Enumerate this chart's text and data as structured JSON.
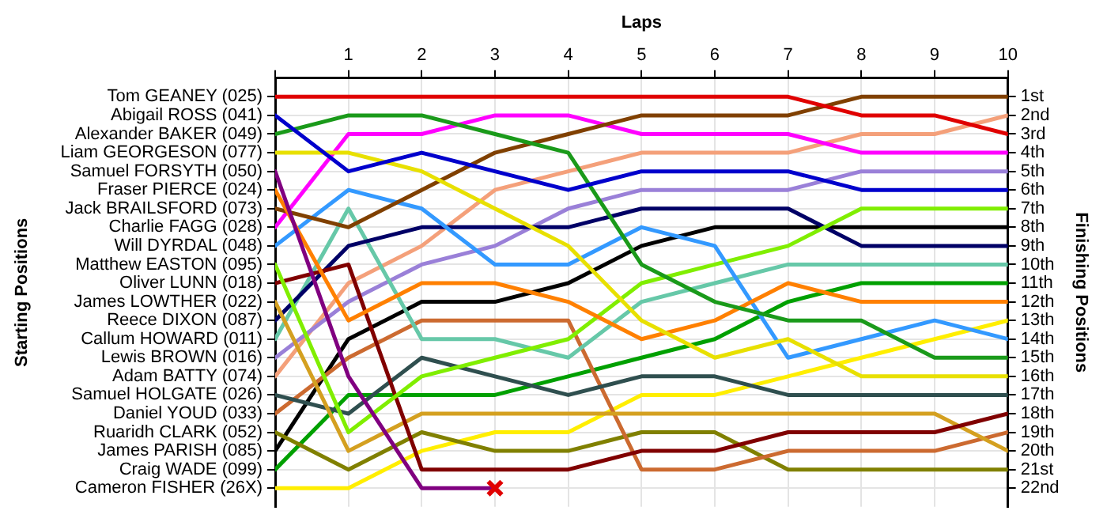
{
  "chart_data": {
    "type": "line",
    "xlabel": "Laps",
    "ylabel": "Finishing Positions",
    "x": [
      0,
      1,
      2,
      3,
      4,
      5,
      6,
      7,
      8,
      9,
      10
    ],
    "xlim": [
      0,
      10
    ],
    "xticks": [
      {
        "value": 0,
        "label": null
      },
      1,
      2,
      3,
      4,
      5,
      6,
      7,
      8,
      9,
      10
    ],
    "ylim": [
      23,
      0
    ],
    "yticks": [
      {
        "value": 1,
        "label": "1st"
      },
      {
        "value": 2,
        "label": "2nd"
      },
      {
        "value": 3,
        "label": "3rd"
      },
      {
        "value": 4,
        "label": "4th"
      },
      {
        "value": 5,
        "label": "5th"
      },
      {
        "value": 6,
        "label": "6th"
      },
      {
        "value": 7,
        "label": "7th"
      },
      {
        "value": 8,
        "label": "8th"
      },
      {
        "value": 9,
        "label": "9th"
      },
      {
        "value": 10,
        "label": "10th"
      },
      {
        "value": 11,
        "label": "11th"
      },
      {
        "value": 12,
        "label": "12th"
      },
      {
        "value": 13,
        "label": "13th"
      },
      {
        "value": 14,
        "label": "14th"
      },
      {
        "value": 15,
        "label": "15th"
      },
      {
        "value": 16,
        "label": "16th"
      },
      {
        "value": 17,
        "label": "17th"
      },
      {
        "value": 18,
        "label": "18th"
      },
      {
        "value": 19,
        "label": "19th"
      },
      {
        "value": 20,
        "label": "20th"
      },
      {
        "value": 21,
        "label": "21st"
      },
      {
        "value": 22,
        "label": "22nd"
      }
    ],
    "annotations": [
      "Tom GEANEY (025)",
      "Abigail ROSS (041)",
      "Alexander BAKER (049)",
      "Liam GEORGESON (077)",
      "Samuel FORSYTH (050)",
      "Fraser PIERCE (024)",
      "Jack BRAILSFORD (073)",
      "Charlie FAGG (028)",
      "Will DYRDAL (048)",
      "Matthew EASTON (095)",
      "Oliver LUNN (018)",
      "James LOWTHER (022)",
      "Reece DIXON (087)",
      "Callum HOWARD (011)",
      "Lewis BROWN (016)",
      "Adam BATTY (074)",
      "Samuel HOLGATE (026)",
      "Daniel YOUD (033)",
      "Ruaridh CLARK (052)",
      "James PARISH (085)",
      "Craig WADE (099)",
      "Cameron FISHER (26X)",
      "Starting Positions"
    ],
    "grid": true,
    "legend": false,
    "marker": "none",
    "series": [
      {
        "color": "#e00000",
        "values": [
          1,
          1,
          1,
          1,
          1,
          1,
          1,
          1,
          2,
          2,
          3
        ]
      },
      {
        "color": "#0000cc",
        "values": [
          2,
          5,
          4,
          5,
          6,
          5,
          5,
          5,
          6,
          6,
          6
        ]
      },
      {
        "color": "#1a9a1a",
        "values": [
          3,
          2,
          2,
          3,
          4,
          10,
          12,
          13,
          13,
          15,
          15
        ]
      },
      {
        "color": "#e8e000",
        "values": [
          4,
          4,
          5,
          7,
          9,
          13,
          15,
          14,
          16,
          16,
          16
        ]
      },
      {
        "color": "#800080",
        "values": [
          5,
          16,
          22,
          22,
          null,
          null,
          null,
          null,
          null,
          null,
          null
        ]
      },
      {
        "color": "#ff8000",
        "values": [
          6,
          13,
          11,
          11,
          12,
          14,
          13,
          11,
          12,
          12,
          12
        ]
      },
      {
        "color": "#804000",
        "values": [
          7,
          8,
          6,
          4,
          3,
          2,
          2,
          2,
          1,
          1,
          1
        ]
      },
      {
        "color": "#ff00ff",
        "values": [
          8,
          3,
          3,
          2,
          2,
          3,
          3,
          3,
          4,
          4,
          4
        ]
      },
      {
        "color": "#3399ff",
        "values": [
          9,
          6,
          7,
          10,
          10,
          8,
          9,
          15,
          14,
          13,
          14
        ]
      },
      {
        "color": "#80ee00",
        "values": [
          10,
          19,
          16,
          15,
          14,
          11,
          10,
          9,
          7,
          7,
          7
        ]
      },
      {
        "color": "#800000",
        "values": [
          11,
          10,
          21,
          21,
          21,
          20,
          20,
          19,
          19,
          19,
          18
        ]
      },
      {
        "color": "#d4a020",
        "values": [
          12,
          20,
          18,
          18,
          18,
          18,
          18,
          18,
          18,
          18,
          20
        ]
      },
      {
        "color": "#000066",
        "values": [
          13,
          9,
          8,
          8,
          8,
          7,
          7,
          7,
          9,
          9,
          9
        ]
      },
      {
        "color": "#66c8a8",
        "values": [
          14,
          7,
          14,
          14,
          15,
          12,
          11,
          10,
          10,
          10,
          10
        ]
      },
      {
        "color": "#9a80d8",
        "values": [
          15,
          12,
          10,
          9,
          7,
          6,
          6,
          6,
          5,
          5,
          5
        ]
      },
      {
        "color": "#f4a07a",
        "values": [
          16,
          11,
          9,
          6,
          5,
          4,
          4,
          4,
          3,
          3,
          2
        ]
      },
      {
        "color": "#2f4f4f",
        "values": [
          17,
          18,
          15,
          16,
          17,
          16,
          16,
          17,
          17,
          17,
          17
        ]
      },
      {
        "color": "#cc6a30",
        "values": [
          18,
          15,
          13,
          13,
          13,
          21,
          21,
          20,
          20,
          20,
          19
        ]
      },
      {
        "color": "#808000",
        "values": [
          19,
          21,
          19,
          20,
          20,
          19,
          19,
          21,
          21,
          21,
          21
        ]
      },
      {
        "color": "#000000",
        "values": [
          20,
          14,
          12,
          12,
          11,
          9,
          8,
          8,
          8,
          8,
          8
        ]
      },
      {
        "color": "#00a000",
        "values": [
          21,
          17,
          17,
          17,
          16,
          15,
          14,
          12,
          11,
          11,
          11
        ]
      },
      {
        "color": "#ffee00",
        "values": [
          22,
          22,
          20,
          19,
          19,
          17,
          17,
          16,
          15,
          14,
          13
        ]
      },
      {
        "type": "scatter",
        "color": "#e00000",
        "marker": "cross",
        "x": [
          3
        ],
        "values": [
          22
        ]
      }
    ]
  }
}
